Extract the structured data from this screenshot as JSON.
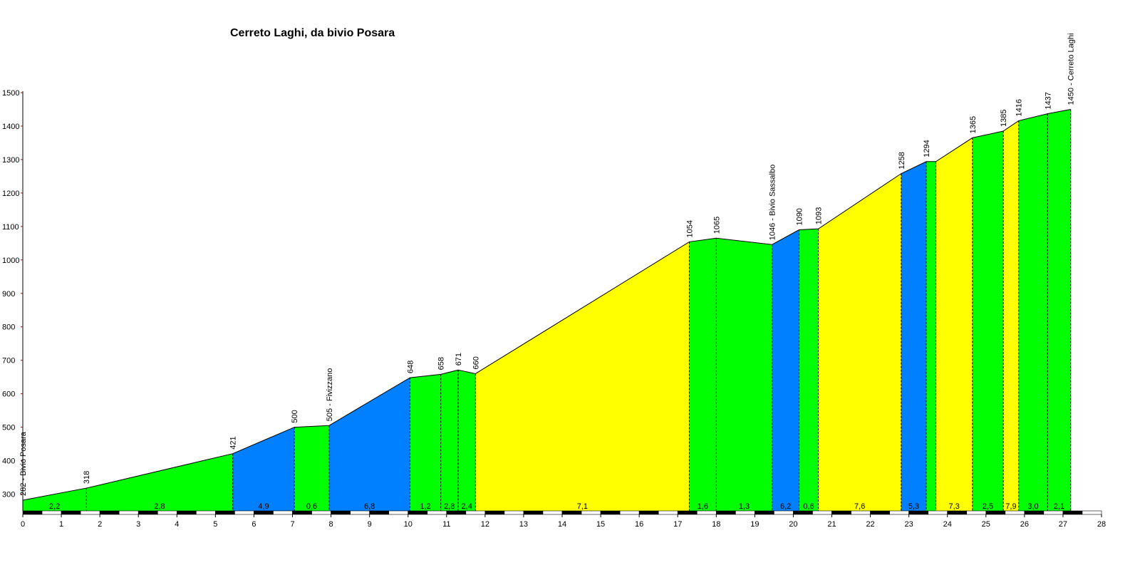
{
  "chart_data": {
    "type": "area",
    "title": "Cerreto Laghi, da bivio Posara",
    "xlim": [
      0,
      28
    ],
    "ylim": [
      250,
      1500
    ],
    "x_ticks": [
      "0",
      "1",
      "2",
      "3",
      "4",
      "5",
      "6",
      "7",
      "8",
      "9",
      "10",
      "11",
      "12",
      "13",
      "14",
      "15",
      "16",
      "17",
      "18",
      "19",
      "20",
      "21",
      "22",
      "23",
      "24",
      "25",
      "26",
      "27",
      "28"
    ],
    "y_ticks": [
      "300",
      "400",
      "500",
      "600",
      "700",
      "800",
      "900",
      "1000",
      "1100",
      "1200",
      "1300",
      "1400",
      "1500"
    ],
    "points": [
      {
        "x": 0.0,
        "y": 282,
        "label": "282 - Bivio Posara"
      },
      {
        "x": 1.65,
        "y": 318,
        "label": "318"
      },
      {
        "x": 5.45,
        "y": 421,
        "label": "421"
      },
      {
        "x": 7.05,
        "y": 500,
        "label": "500"
      },
      {
        "x": 7.95,
        "y": 505,
        "label": "505 - Fivizzano"
      },
      {
        "x": 10.05,
        "y": 648,
        "label": "648"
      },
      {
        "x": 10.85,
        "y": 658,
        "label": "658"
      },
      {
        "x": 11.3,
        "y": 671,
        "label": "671"
      },
      {
        "x": 11.75,
        "y": 660,
        "label": "660"
      },
      {
        "x": 17.3,
        "y": 1054,
        "label": "1054"
      },
      {
        "x": 18.0,
        "y": 1065,
        "label": "1065"
      },
      {
        "x": 19.45,
        "y": 1046,
        "label": "1046 - Bivio Sassalbo"
      },
      {
        "x": 20.15,
        "y": 1090,
        "label": "1090"
      },
      {
        "x": 20.65,
        "y": 1093,
        "label": "1093"
      },
      {
        "x": 22.8,
        "y": 1258,
        "label": "1258"
      },
      {
        "x": 23.45,
        "y": 1294,
        "label": "1294"
      },
      {
        "x": 23.7,
        "y": 1294,
        "label": ""
      },
      {
        "x": 24.65,
        "y": 1365,
        "label": "1365"
      },
      {
        "x": 25.45,
        "y": 1385,
        "label": "1385"
      },
      {
        "x": 25.85,
        "y": 1416,
        "label": "1416"
      },
      {
        "x": 26.6,
        "y": 1437,
        "label": "1437"
      },
      {
        "x": 27.2,
        "y": 1450,
        "label": "1450 - Cerreto Laghi"
      }
    ],
    "segments": [
      {
        "gradient": "2,2",
        "color": "#00ff00"
      },
      {
        "gradient": "2,8",
        "color": "#00ff00"
      },
      {
        "gradient": "4,9",
        "color": "#0080ff"
      },
      {
        "gradient": "0,6",
        "color": "#00ff00"
      },
      {
        "gradient": "6,8",
        "color": "#0080ff"
      },
      {
        "gradient": "1,2",
        "color": "#00ff00"
      },
      {
        "gradient": "2,8",
        "color": "#00ff00"
      },
      {
        "gradient": "2,4",
        "color": "#00ff00"
      },
      {
        "gradient": "7,1",
        "color": "#ffff00"
      },
      {
        "gradient": "1,6",
        "color": "#00ff00"
      },
      {
        "gradient": "1,3",
        "color": "#00ff00"
      },
      {
        "gradient": "6,2",
        "color": "#0080ff"
      },
      {
        "gradient": "0,6",
        "color": "#00ff00"
      },
      {
        "gradient": "7,6",
        "color": "#ffff00"
      },
      {
        "gradient": "5,3",
        "color": "#0080ff"
      },
      {
        "gradient": "",
        "color": "#00ff00"
      },
      {
        "gradient": "7,3",
        "color": "#ffff00"
      },
      {
        "gradient": "2,5",
        "color": "#00ff00"
      },
      {
        "gradient": "7,9",
        "color": "#ffff00"
      },
      {
        "gradient": "3,0",
        "color": "#00ff00"
      },
      {
        "gradient": "2,1",
        "color": "#00ff00"
      }
    ]
  }
}
